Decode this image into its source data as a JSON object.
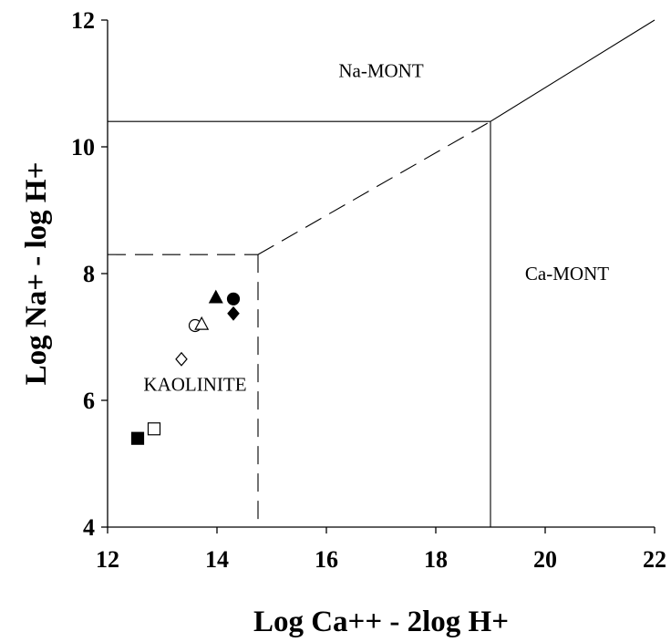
{
  "chart_data": {
    "type": "scatter",
    "xlabel": "Log Ca++ - 2log H+",
    "ylabel": "Log Na+ - log H+",
    "xlim": [
      12,
      22
    ],
    "ylim": [
      4,
      12
    ],
    "x_ticks": [
      "12",
      "14",
      "16",
      "18",
      "20",
      "22"
    ],
    "y_ticks": [
      "4",
      "6",
      "8",
      "10",
      "12"
    ],
    "grid": false,
    "regions": [
      {
        "label": "Na-MONT",
        "x": 17,
        "y": 11.1
      },
      {
        "label": "Ca-MONT",
        "x": 20.4,
        "y": 7.9
      },
      {
        "label": "KAOLINITE",
        "x": 13.6,
        "y": 6.15
      }
    ],
    "boundaries": [
      {
        "style": "solid",
        "points": [
          [
            12,
            10.4
          ],
          [
            19,
            10.4
          ]
        ]
      },
      {
        "style": "solid",
        "points": [
          [
            19,
            10.4
          ],
          [
            22,
            12
          ]
        ]
      },
      {
        "style": "solid",
        "points": [
          [
            19,
            10.4
          ],
          [
            19,
            4
          ]
        ]
      },
      {
        "style": "dashed",
        "points": [
          [
            12,
            8.3
          ],
          [
            14.75,
            8.3
          ]
        ]
      },
      {
        "style": "dashed",
        "points": [
          [
            14.75,
            8.3
          ],
          [
            19,
            10.4
          ]
        ]
      },
      {
        "style": "dashed",
        "points": [
          [
            14.75,
            8.3
          ],
          [
            14.75,
            4
          ]
        ]
      }
    ],
    "points": [
      {
        "marker": "filled-square",
        "x": 12.55,
        "y": 5.4
      },
      {
        "marker": "open-square",
        "x": 12.85,
        "y": 5.55
      },
      {
        "marker": "open-diamond",
        "x": 13.35,
        "y": 6.65
      },
      {
        "marker": "open-circle",
        "x": 13.6,
        "y": 7.18
      },
      {
        "marker": "open-triangle",
        "x": 13.72,
        "y": 7.2
      },
      {
        "marker": "filled-triangle",
        "x": 13.98,
        "y": 7.62
      },
      {
        "marker": "filled-circle",
        "x": 14.3,
        "y": 7.6
      },
      {
        "marker": "filled-diamond",
        "x": 14.3,
        "y": 7.37
      }
    ]
  }
}
